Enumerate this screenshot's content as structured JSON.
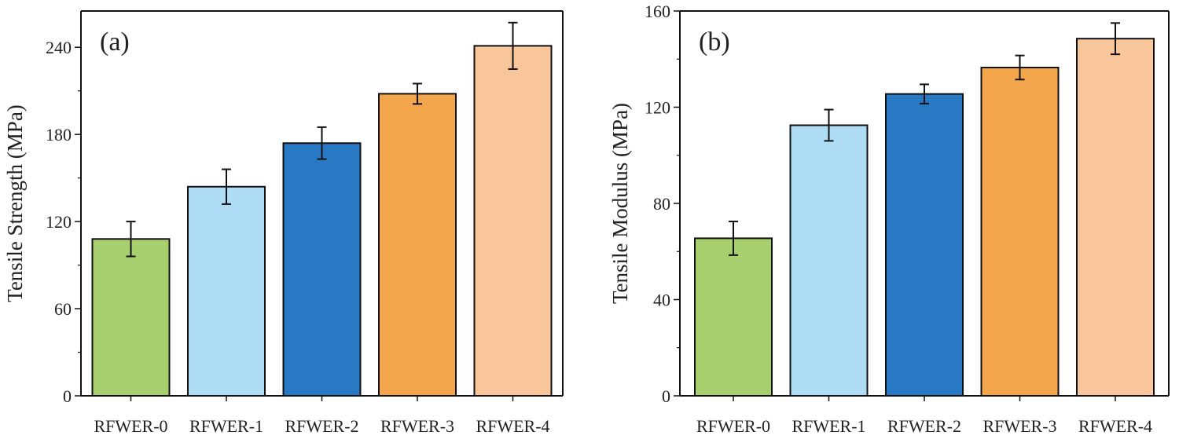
{
  "figure": {
    "caption": ""
  },
  "chart_data": [
    {
      "type": "bar",
      "panel_label": "(a)",
      "title": "",
      "xlabel": "",
      "ylabel": "Tensile Strength (MPa)",
      "categories": [
        "RFWER-0",
        "RFWER-1",
        "RFWER-2",
        "RFWER-3",
        "RFWER-4"
      ],
      "values": [
        108,
        144,
        174,
        208,
        241
      ],
      "errors": [
        12,
        12,
        11,
        7,
        16
      ],
      "colors": [
        "#a8cf6e",
        "#aedcf5",
        "#2878c4",
        "#f4a64c",
        "#f9c69c"
      ],
      "ylim": [
        0,
        265
      ],
      "yticks": [
        0,
        60,
        120,
        180,
        240
      ],
      "grid": false,
      "legend": "none"
    },
    {
      "type": "bar",
      "panel_label": "(b)",
      "title": "",
      "xlabel": "",
      "ylabel": "Tensile Modulus (MPa)",
      "categories": [
        "RFWER-0",
        "RFWER-1",
        "RFWER-2",
        "RFWER-3",
        "RFWER-4"
      ],
      "values": [
        65.5,
        112.5,
        125.5,
        136.5,
        148.5
      ],
      "errors": [
        7,
        6.5,
        4,
        5,
        6.5
      ],
      "colors": [
        "#a8cf6e",
        "#aedcf5",
        "#2878c4",
        "#f4a64c",
        "#f9c69c"
      ],
      "ylim": [
        0,
        160
      ],
      "yticks": [
        0,
        40,
        80,
        120,
        160
      ],
      "grid": false,
      "legend": "none"
    }
  ]
}
